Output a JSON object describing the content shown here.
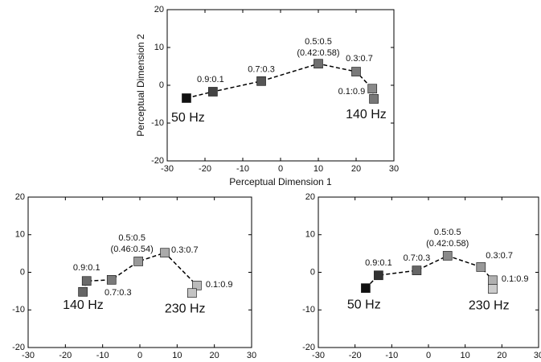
{
  "chart_data": [
    {
      "type": "line",
      "line_style": "dashed",
      "xlabel": "Perceptual Dimension 1",
      "ylabel": "Perceptual Dimension 2",
      "x": [
        -24.9,
        -17.9,
        -5.1,
        10,
        20,
        24.3,
        24.7
      ],
      "values": [
        -3.4,
        -1.7,
        1.1,
        5.7,
        3.6,
        -0.9,
        -3.6
      ],
      "point_labels": [
        "50 Hz",
        "0.9:0.1",
        "0.7:0.3",
        "0.5:0.5",
        "0.3:0.7",
        "0.1:0.9",
        "140 Hz"
      ],
      "annotation": "(0.42:0.58)",
      "colors": [
        "#111111",
        "#444444",
        "#555555",
        "#6e6e6e",
        "#7a7a7a",
        "#8a8a8a",
        "#777777"
      ],
      "xlim": [
        -30,
        30
      ],
      "ylim": [
        -20,
        20
      ],
      "xticks": [
        -30,
        -20,
        -10,
        0,
        10,
        20,
        30
      ],
      "yticks": [
        -20,
        -10,
        0,
        10,
        20
      ]
    },
    {
      "type": "line",
      "line_style": "dashed",
      "x": [
        -15.3,
        -14.3,
        -7.6,
        -0.4,
        6.7,
        15.3,
        14
      ],
      "values": [
        -5.2,
        -2.3,
        -2.0,
        2.9,
        5.2,
        -3.5,
        -5.5
      ],
      "point_labels": [
        "140 Hz",
        "0.9:0.1",
        "0.7:0.3",
        "0.5:0.5",
        "0.3:0.7",
        "0.1:0.9",
        "230 Hz"
      ],
      "annotation": "(0.46:0.54)",
      "colors": [
        "#666666",
        "#6a6a6a",
        "#7a7a7a",
        "#999999",
        "#aaaaaa",
        "#bbbbbb",
        "#c4c4c4"
      ],
      "xlim": [
        -30,
        30
      ],
      "ylim": [
        -20,
        20
      ],
      "xticks": [
        -30,
        -20,
        -10,
        0,
        10,
        20,
        30
      ],
      "yticks": [
        -20,
        -10,
        0,
        10,
        20
      ]
    },
    {
      "type": "line",
      "line_style": "dashed",
      "x": [
        -17.1,
        -13.6,
        -3.2,
        5.2,
        14.3,
        17.5,
        17.5
      ],
      "values": [
        -4.2,
        -0.8,
        0.5,
        4.4,
        1.4,
        -2.1,
        -4.4
      ],
      "point_labels": [
        "50 Hz",
        "0.9:0.1",
        "0.7:0.3",
        "0.5:0.5",
        "0.3:0.7",
        "0.1:0.9",
        "230 Hz"
      ],
      "annotation": "(0.42:0.58)",
      "colors": [
        "#111111",
        "#333333",
        "#666666",
        "#8a8a8a",
        "#999999",
        "#b0b0b0",
        "#cccccc"
      ],
      "xlim": [
        -30,
        30
      ],
      "ylim": [
        -20,
        20
      ],
      "xticks": [
        -30,
        -20,
        -10,
        0,
        10,
        20,
        30
      ],
      "yticks": [
        -20,
        -10,
        0,
        10,
        20
      ]
    }
  ]
}
